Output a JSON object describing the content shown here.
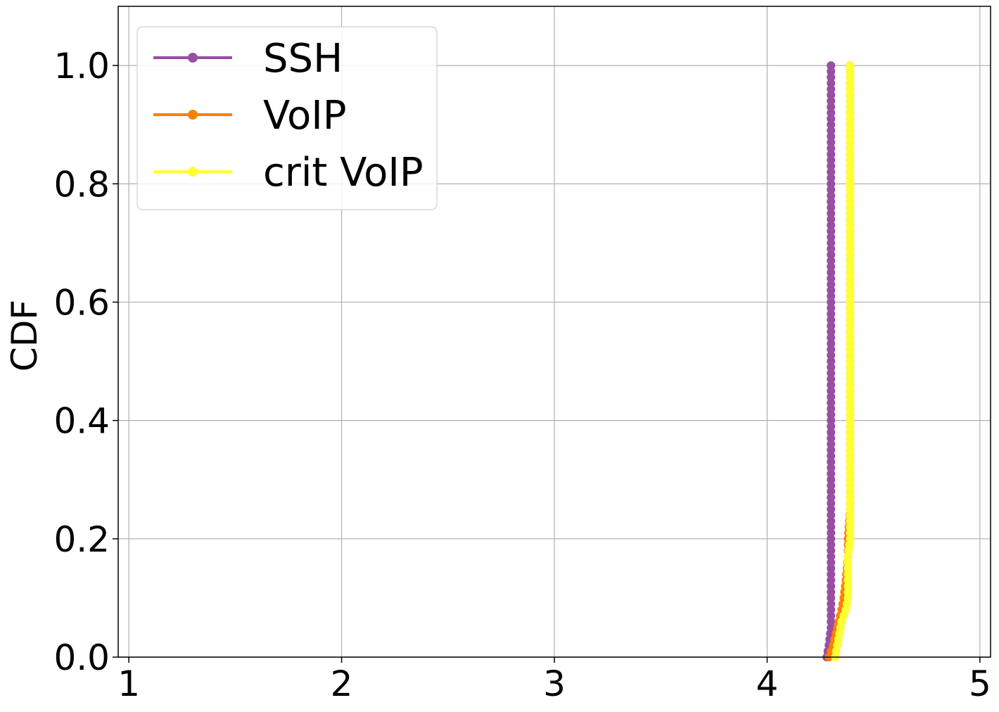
{
  "chart_data": {
    "type": "line",
    "title": "",
    "xlabel": "",
    "ylabel": "CDF",
    "xlim": [
      0.95,
      5.05
    ],
    "ylim": [
      0.0,
      1.1
    ],
    "x_ticks": [
      "1",
      "2",
      "3",
      "4",
      "5"
    ],
    "y_ticks": [
      "0.0",
      "0.2",
      "0.4",
      "0.6",
      "0.8",
      "1.0"
    ],
    "grid": true,
    "legend_position": "top-left",
    "series": [
      {
        "name": "SSH",
        "color": "#984ea3",
        "points": [
          [
            4.28,
            0.0
          ],
          [
            4.29,
            0.02
          ],
          [
            4.3,
            0.05
          ],
          [
            4.3,
            0.1
          ],
          [
            4.3,
            0.2
          ],
          [
            4.3,
            0.3
          ],
          [
            4.3,
            0.4
          ],
          [
            4.3,
            0.5
          ],
          [
            4.3,
            0.6
          ],
          [
            4.3,
            0.7
          ],
          [
            4.3,
            0.8
          ],
          [
            4.3,
            0.9
          ],
          [
            4.3,
            1.0
          ]
        ]
      },
      {
        "name": "VoIP",
        "color": "#ff7f00",
        "points": [
          [
            4.29,
            0.0
          ],
          [
            4.31,
            0.02
          ],
          [
            4.33,
            0.05
          ],
          [
            4.35,
            0.08
          ],
          [
            4.36,
            0.1
          ],
          [
            4.37,
            0.13
          ],
          [
            4.38,
            0.17
          ],
          [
            4.38,
            0.2
          ],
          [
            4.39,
            0.25
          ],
          [
            4.39,
            0.3
          ],
          [
            4.39,
            0.5
          ],
          [
            4.39,
            0.7
          ],
          [
            4.39,
            0.9
          ],
          [
            4.39,
            1.0
          ]
        ]
      },
      {
        "name": "crit VoIP",
        "color": "#ffff33",
        "points": [
          [
            4.32,
            0.0
          ],
          [
            4.33,
            0.02
          ],
          [
            4.34,
            0.04
          ],
          [
            4.35,
            0.06
          ],
          [
            4.36,
            0.07
          ],
          [
            4.37,
            0.08
          ],
          [
            4.38,
            0.1
          ],
          [
            4.38,
            0.13
          ],
          [
            4.38,
            0.17
          ],
          [
            4.39,
            0.2
          ],
          [
            4.39,
            0.3
          ],
          [
            4.39,
            0.5
          ],
          [
            4.39,
            0.7
          ],
          [
            4.39,
            0.9
          ],
          [
            4.39,
            1.0
          ]
        ]
      }
    ]
  }
}
